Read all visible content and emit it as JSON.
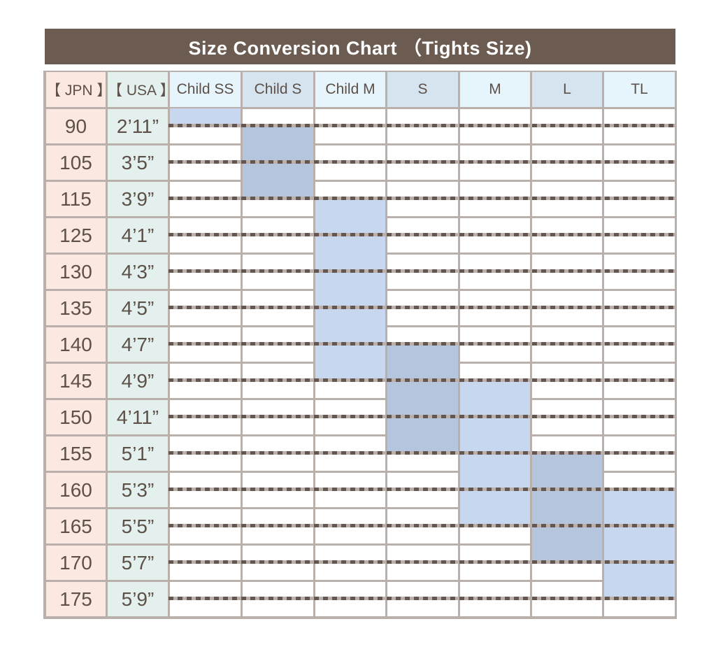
{
  "title": "Size Conversion Chart （Tights Size)",
  "headers": {
    "jpn": "【 JPN 】",
    "usa": "【 USA 】"
  },
  "sizes": [
    "Child SS",
    "Child S",
    "Child M",
    "S",
    "M",
    "L",
    "TL"
  ],
  "rows": [
    {
      "jpn": "90",
      "usa": "2’11”"
    },
    {
      "jpn": "105",
      "usa": "3’5”"
    },
    {
      "jpn": "115",
      "usa": "3’9”"
    },
    {
      "jpn": "125",
      "usa": "4’1”"
    },
    {
      "jpn": "130",
      "usa": "4’3”"
    },
    {
      "jpn": "135",
      "usa": "4’5”"
    },
    {
      "jpn": "140",
      "usa": "4’7”"
    },
    {
      "jpn": "145",
      "usa": "4’9”"
    },
    {
      "jpn": "150",
      "usa": "4’11”"
    },
    {
      "jpn": "155",
      "usa": "5’1”"
    },
    {
      "jpn": "160",
      "usa": "5’3”"
    },
    {
      "jpn": "165",
      "usa": "5’5”"
    },
    {
      "jpn": "170",
      "usa": "5’7”"
    },
    {
      "jpn": "175",
      "usa": "5’9”"
    }
  ],
  "ranges": [
    {
      "size": "Child SS",
      "from_jpn": null,
      "to_jpn": "90",
      "shade": "light"
    },
    {
      "size": "Child S",
      "from_jpn": "90",
      "to_jpn": "115",
      "shade": "dark"
    },
    {
      "size": "Child M",
      "from_jpn": "115",
      "to_jpn": "145",
      "shade": "light"
    },
    {
      "size": "S",
      "from_jpn": "140",
      "to_jpn": "155",
      "shade": "dark"
    },
    {
      "size": "M",
      "from_jpn": "145",
      "to_jpn": "165",
      "shade": "light"
    },
    {
      "size": "L",
      "from_jpn": "155",
      "to_jpn": "170",
      "shade": "dark"
    },
    {
      "size": "TL",
      "from_jpn": "160",
      "to_jpn": "175",
      "shade": "light"
    }
  ],
  "colors": {
    "title_bg": "#6b5b51",
    "jpn_bg": "#fbe9e1",
    "usa_bg": "#e3f0ee",
    "header_light": "#e6f4fc",
    "header_dark": "#d5e4ef",
    "fill_light": "#c6d7ef",
    "fill_dark": "#b5c5dd"
  }
}
